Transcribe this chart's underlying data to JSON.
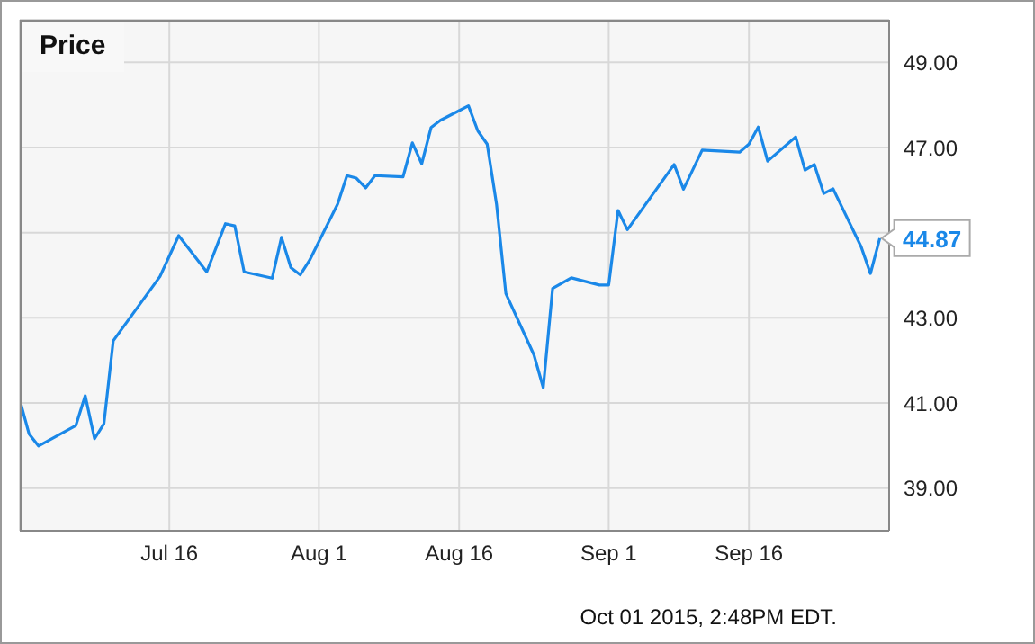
{
  "chart_data": {
    "type": "line",
    "title": "Price",
    "annotations": [
      "Oct 01 2015, 2:48PM EDT."
    ],
    "xlim": [
      "2015-06-30",
      "2015-10-01"
    ],
    "xticks": [
      {
        "value": "2015-07-16",
        "label": "Jul 16"
      },
      {
        "value": "2015-08-01",
        "label": "Aug 1"
      },
      {
        "value": "2015-08-16",
        "label": "Aug 16"
      },
      {
        "value": "2015-09-01",
        "label": "Sep 1"
      },
      {
        "value": "2015-09-16",
        "label": "Sep 16"
      }
    ],
    "ylim": [
      38,
      50
    ],
    "yticks": [
      {
        "value": 39,
        "label": "39.00"
      },
      {
        "value": 41,
        "label": "41.00"
      },
      {
        "value": 43,
        "label": "43.00"
      },
      {
        "value": 45,
        "label": null
      },
      {
        "value": 47,
        "label": "47.00"
      },
      {
        "value": 49,
        "label": "49.00"
      }
    ],
    "grid": true,
    "marker": "none",
    "line_style": "solid",
    "x": [
      "2015-06-30",
      "2015-07-01",
      "2015-07-02",
      "2015-07-06",
      "2015-07-07",
      "2015-07-08",
      "2015-07-09",
      "2015-07-10",
      "2015-07-15",
      "2015-07-17",
      "2015-07-20",
      "2015-07-22",
      "2015-07-23",
      "2015-07-24",
      "2015-07-27",
      "2015-07-28",
      "2015-07-29",
      "2015-07-30",
      "2015-07-31",
      "2015-08-03",
      "2015-08-04",
      "2015-08-05",
      "2015-08-06",
      "2015-08-07",
      "2015-08-10",
      "2015-08-11",
      "2015-08-12",
      "2015-08-13",
      "2015-08-14",
      "2015-08-17",
      "2015-08-18",
      "2015-08-19",
      "2015-08-20",
      "2015-08-21",
      "2015-08-24",
      "2015-08-25",
      "2015-08-26",
      "2015-08-28",
      "2015-08-31",
      "2015-09-01",
      "2015-09-02",
      "2015-09-03",
      "2015-09-08",
      "2015-09-09",
      "2015-09-11",
      "2015-09-15",
      "2015-09-16",
      "2015-09-17",
      "2015-09-18",
      "2015-09-21",
      "2015-09-22",
      "2015-09-23",
      "2015-09-24",
      "2015-09-25",
      "2015-09-28",
      "2015-09-29",
      "2015-09-30"
    ],
    "series": [
      {
        "color": "#1a88e8",
        "values": [
          41.07,
          40.27,
          39.99,
          40.47,
          41.17,
          40.16,
          40.51,
          42.46,
          43.97,
          44.93,
          44.08,
          45.21,
          45.16,
          44.08,
          43.93,
          44.89,
          44.18,
          44.01,
          44.35,
          45.67,
          46.34,
          46.28,
          46.05,
          46.34,
          46.31,
          47.11,
          46.62,
          47.47,
          47.64,
          47.98,
          47.39,
          47.08,
          45.67,
          43.57,
          42.13,
          41.36,
          43.69,
          43.94,
          43.77,
          43.77,
          45.52,
          45.07,
          46.6,
          46.02,
          46.94,
          46.89,
          47.08,
          47.48,
          46.68,
          47.25,
          46.47,
          46.6,
          45.92,
          46.03,
          44.67,
          44.04,
          44.87
        ],
        "value_labels": [
          null,
          null,
          null,
          null,
          null,
          null,
          null,
          null,
          null,
          null,
          null,
          null,
          null,
          null,
          null,
          null,
          null,
          null,
          null,
          null,
          null,
          null,
          null,
          null,
          null,
          null,
          null,
          null,
          null,
          null,
          null,
          null,
          null,
          null,
          null,
          null,
          null,
          null,
          null,
          null,
          null,
          null,
          null,
          null,
          null,
          null,
          null,
          null,
          null,
          null,
          null,
          null,
          null,
          null,
          null,
          null,
          "44.87"
        ]
      }
    ]
  }
}
